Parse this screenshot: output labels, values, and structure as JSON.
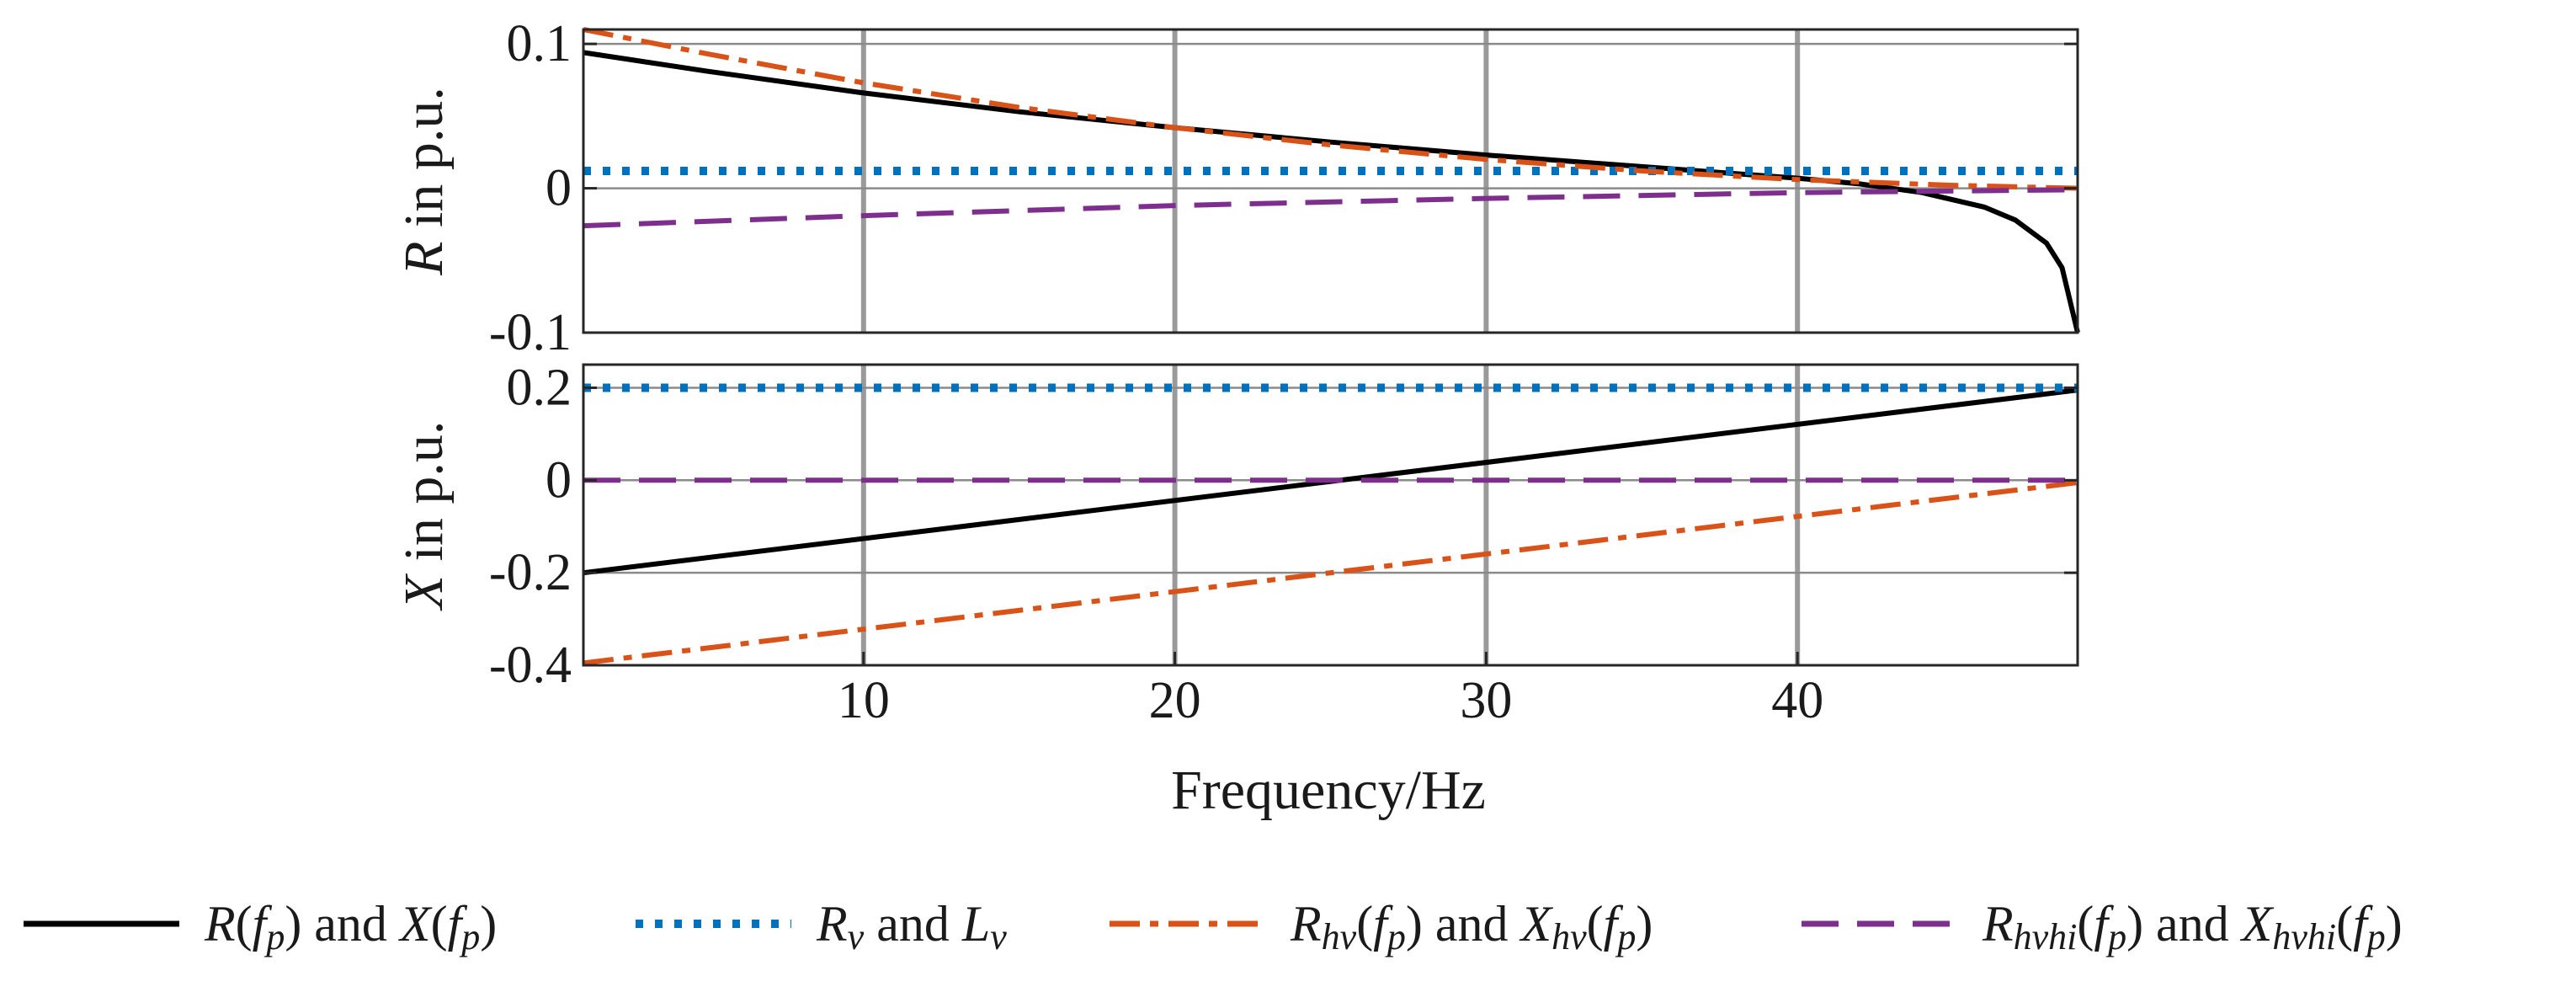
{
  "chart_data": [
    {
      "type": "line",
      "panel": "top",
      "ylabel_var": "R",
      "ylabel_rest": " in p.u.",
      "xlim": [
        1,
        49
      ],
      "ylim": [
        -0.1,
        0.11
      ],
      "yticks": [
        -0.1,
        0,
        0.1
      ],
      "ytick_labels": [
        "-0.1",
        "0",
        "0.1"
      ],
      "xgrid": [
        10,
        20,
        30,
        40
      ],
      "grid": true,
      "series": [
        {
          "name": "R(fp)",
          "color": "#000000",
          "style": "solid",
          "x": [
            1,
            5,
            10,
            15,
            20,
            25,
            30,
            35,
            40,
            42,
            44,
            46,
            47,
            48,
            48.5,
            49
          ],
          "y": [
            0.094,
            0.081,
            0.066,
            0.053,
            0.042,
            0.032,
            0.023,
            0.015,
            0.007,
            0.003,
            -0.003,
            -0.013,
            -0.022,
            -0.038,
            -0.055,
            -0.1
          ]
        },
        {
          "name": "Rv",
          "color": "#0072BD",
          "style": "dotted",
          "x": [
            1,
            49
          ],
          "y": [
            0.012,
            0.012
          ]
        },
        {
          "name": "Rhv(fp)",
          "color": "#D95319",
          "style": "dashdot",
          "x": [
            1,
            5,
            10,
            15,
            20,
            25,
            30,
            35,
            40,
            45,
            49
          ],
          "y": [
            0.11,
            0.093,
            0.073,
            0.056,
            0.042,
            0.03,
            0.02,
            0.012,
            0.006,
            0.002,
            0.0
          ]
        },
        {
          "name": "Rhvhi(fp)",
          "color": "#7E2F8E",
          "style": "dashed",
          "x": [
            1,
            10,
            20,
            30,
            40,
            49
          ],
          "y": [
            -0.026,
            -0.019,
            -0.012,
            -0.007,
            -0.003,
            -0.001
          ]
        }
      ]
    },
    {
      "type": "line",
      "panel": "bottom",
      "ylabel_var": "X",
      "ylabel_rest": " in p.u.",
      "xlabel": "Frequency/Hz",
      "xlim": [
        1,
        49
      ],
      "ylim": [
        -0.4,
        0.25
      ],
      "yticks": [
        -0.4,
        -0.2,
        0,
        0.2
      ],
      "ytick_labels": [
        "-0.4",
        "-0.2",
        "0",
        "0.2"
      ],
      "xticks": [
        10,
        20,
        30,
        40
      ],
      "xtick_labels": [
        "10",
        "20",
        "30",
        "40"
      ],
      "grid": true,
      "series": [
        {
          "name": "X(fp)",
          "color": "#000000",
          "style": "solid",
          "x": [
            1,
            49
          ],
          "y": [
            -0.2,
            0.195
          ]
        },
        {
          "name": "Lv",
          "color": "#0072BD",
          "style": "dotted",
          "x": [
            1,
            49
          ],
          "y": [
            0.2,
            0.2
          ]
        },
        {
          "name": "Xhv(fp)",
          "color": "#D95319",
          "style": "dashdot",
          "x": [
            1,
            49
          ],
          "y": [
            -0.395,
            -0.005
          ]
        },
        {
          "name": "Xhvhi(fp)",
          "color": "#7E2F8E",
          "style": "dashed",
          "x": [
            1,
            49
          ],
          "y": [
            0.0,
            0.0
          ]
        }
      ]
    }
  ],
  "legend": {
    "placement": "bottom",
    "entries": [
      {
        "color": "#000000",
        "style": "solid",
        "parts": [
          [
            "R",
            "i"
          ],
          [
            "(",
            ""
          ],
          [
            "f",
            "i"
          ],
          [
            "p",
            "is"
          ],
          [
            ") and ",
            ""
          ],
          [
            "X",
            "i"
          ],
          [
            "(",
            ""
          ],
          [
            "f",
            "i"
          ],
          [
            "p",
            "is"
          ],
          [
            ")",
            ""
          ]
        ]
      },
      {
        "color": "#0072BD",
        "style": "dotted",
        "parts": [
          [
            "R",
            "i"
          ],
          [
            "v",
            "is"
          ],
          [
            " and ",
            ""
          ],
          [
            "L",
            "i"
          ],
          [
            "v",
            "is"
          ]
        ]
      },
      {
        "color": "#D95319",
        "style": "dashdot",
        "parts": [
          [
            "R",
            "i"
          ],
          [
            "hv",
            "is"
          ],
          [
            "(",
            ""
          ],
          [
            "f",
            "i"
          ],
          [
            "p",
            "is"
          ],
          [
            ") and ",
            ""
          ],
          [
            "X",
            "i"
          ],
          [
            "hv",
            "is"
          ],
          [
            "(",
            ""
          ],
          [
            "f",
            "i"
          ],
          [
            "p",
            "is"
          ],
          [
            ")",
            ""
          ]
        ]
      },
      {
        "color": "#7E2F8E",
        "style": "dashed",
        "parts": [
          [
            "R",
            "i"
          ],
          [
            "hvhi",
            "is"
          ],
          [
            "(",
            ""
          ],
          [
            "f",
            "i"
          ],
          [
            "p",
            "is"
          ],
          [
            ") and ",
            ""
          ],
          [
            "X",
            "i"
          ],
          [
            "hvhi",
            "is"
          ],
          [
            "(",
            ""
          ],
          [
            "f",
            "i"
          ],
          [
            "p",
            "is"
          ],
          [
            ")",
            ""
          ]
        ]
      }
    ]
  }
}
